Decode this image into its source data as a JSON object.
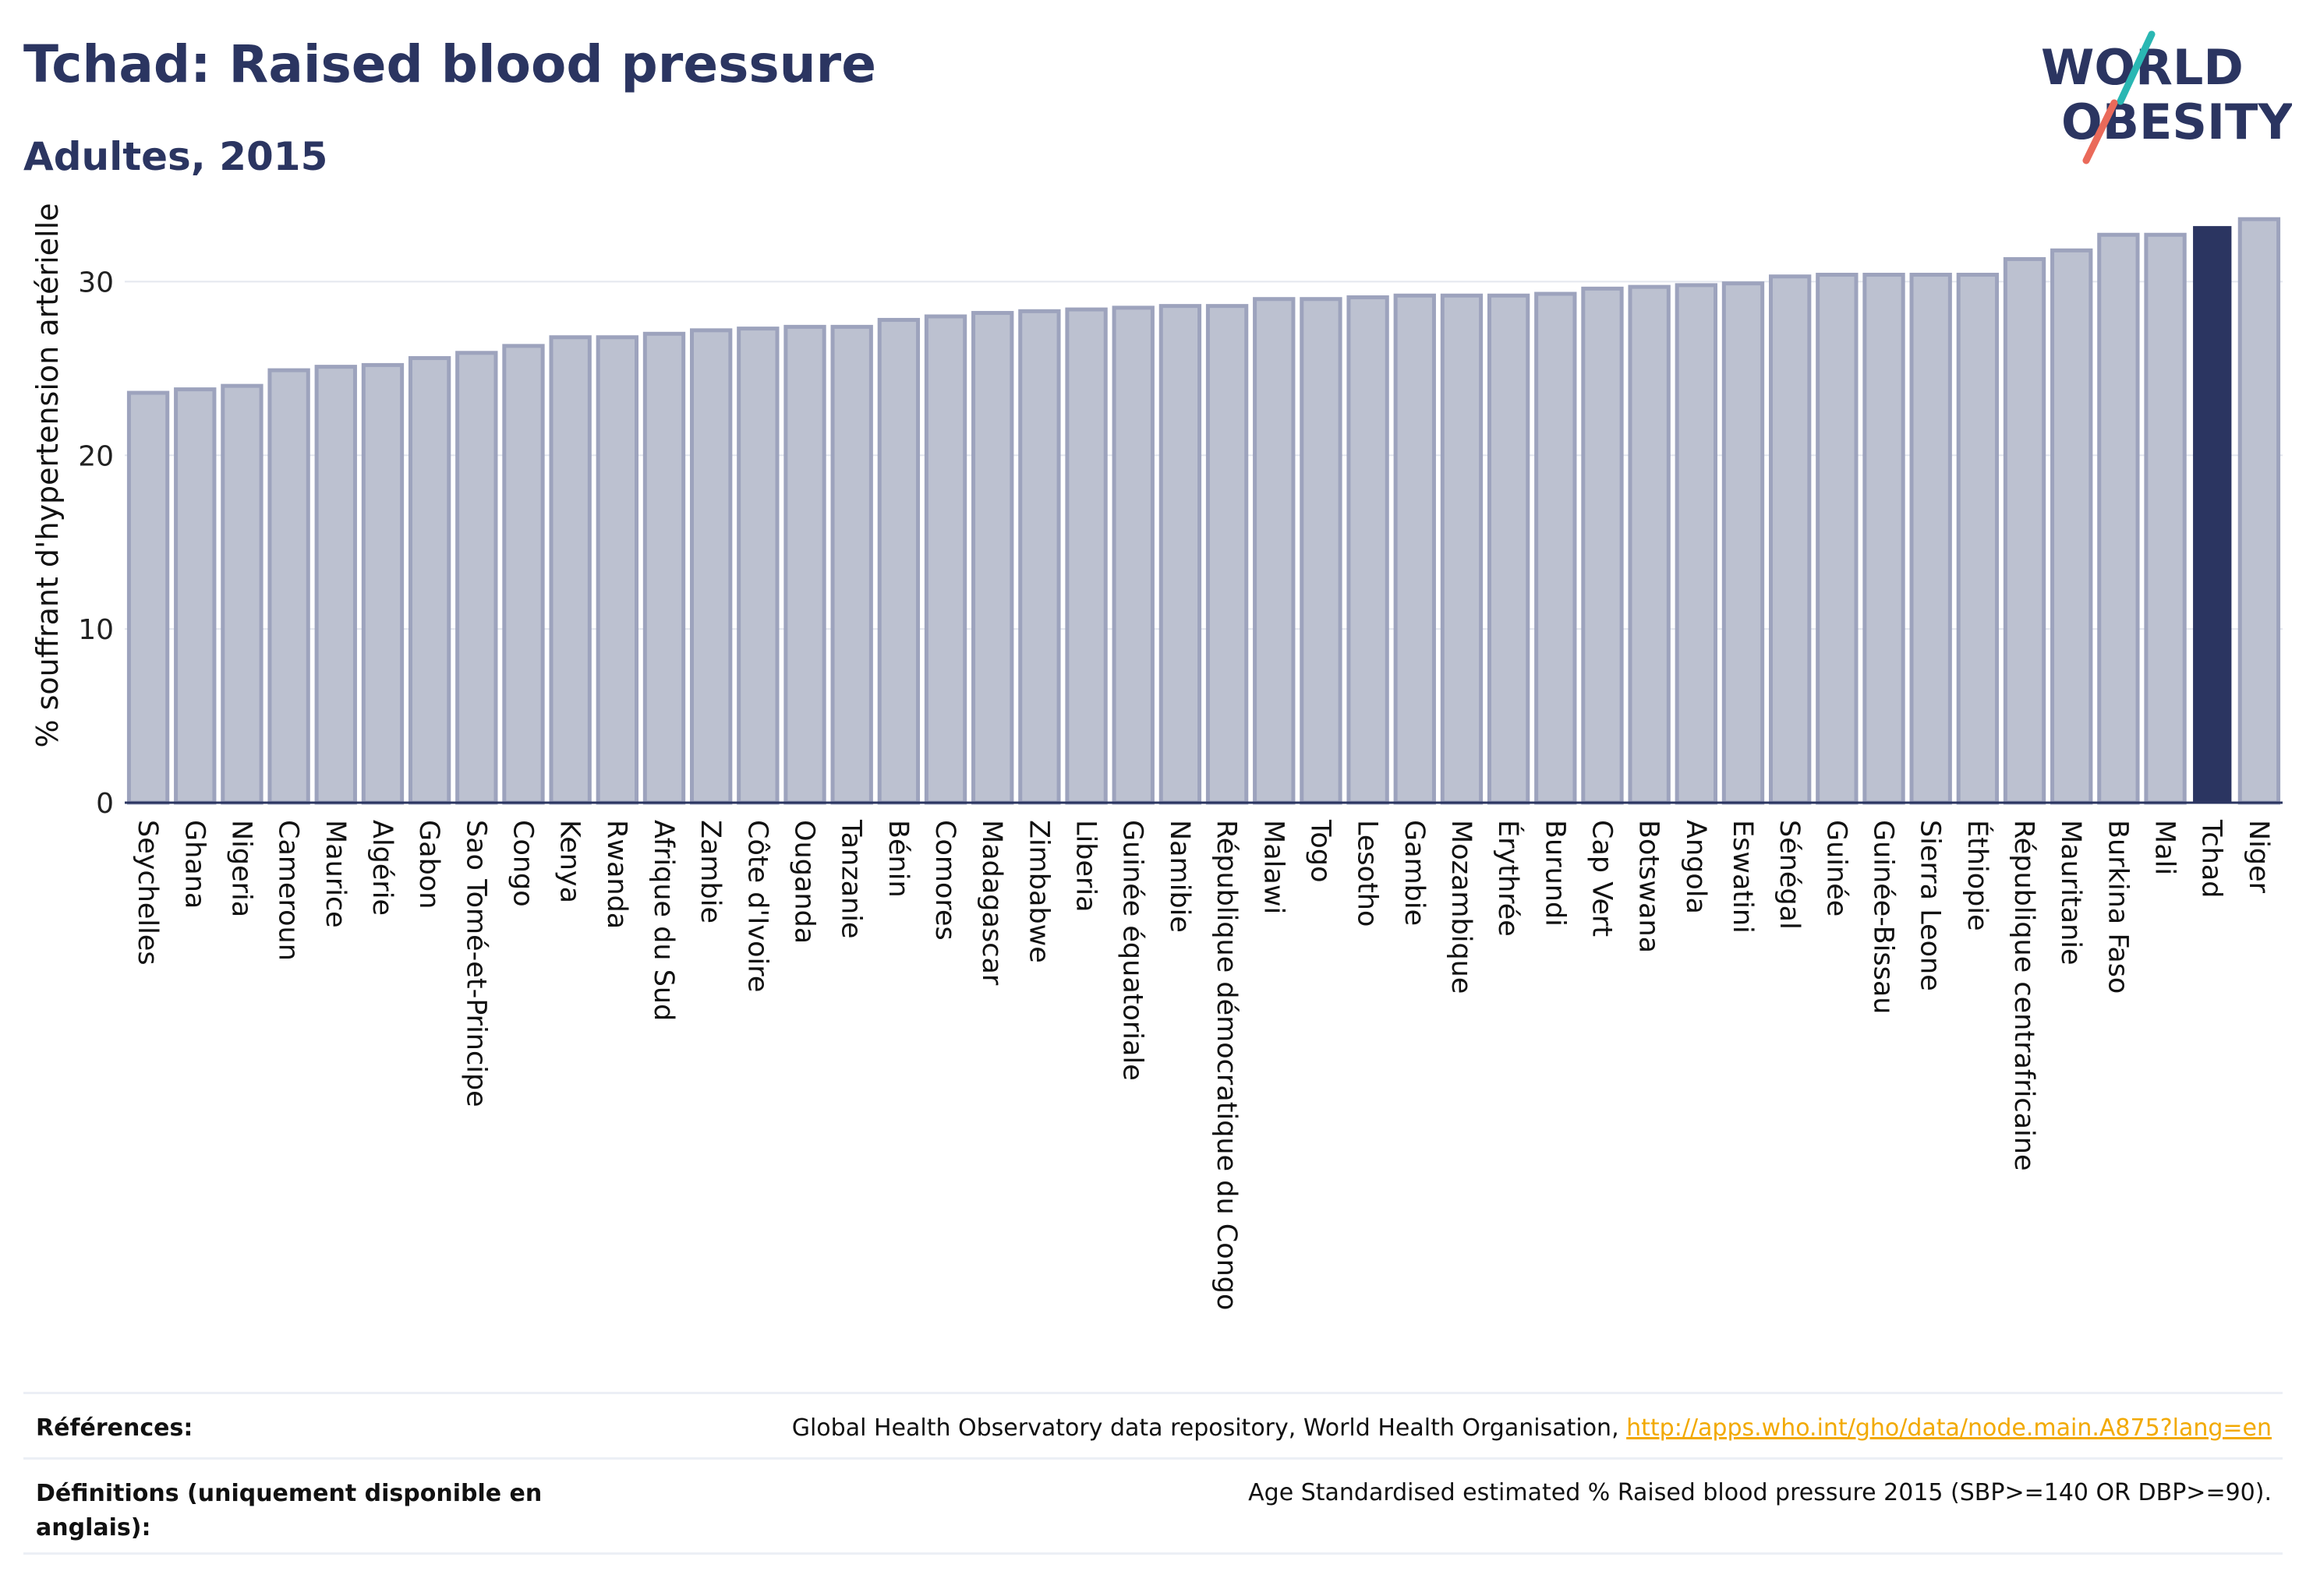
{
  "header": {
    "title": "Tchad: Raised blood pressure",
    "subtitle": "Adultes, 2015"
  },
  "logo": {
    "line1": "WORLD",
    "line2": "OBESITY"
  },
  "colors": {
    "highlight": "#2b3561",
    "bar_fill": "#bcc1d0",
    "bar_edge": "#9da3bd",
    "title": "#2b3561",
    "link": "#f2a900",
    "logo_teal": "#2ab7b3",
    "logo_coral": "#ea6a5a"
  },
  "chart_data": {
    "type": "bar",
    "title": "Tchad: Raised blood pressure",
    "subtitle": "Adultes, 2015",
    "ylabel": "% souffrant d'hypertension artérielle",
    "xlabel": "",
    "ylim": [
      0,
      35
    ],
    "yticks": [
      0,
      10,
      20,
      30
    ],
    "grid": true,
    "highlight": "Tchad",
    "categories": [
      "Seychelles",
      "Ghana",
      "Nigeria",
      "Cameroun",
      "Maurice",
      "Algérie",
      "Gabon",
      "Sao Tomé-et-Principe",
      "Congo",
      "Kenya",
      "Rwanda",
      "Afrique du Sud",
      "Zambie",
      "Côte d'Ivoire",
      "Ouganda",
      "Tanzanie",
      "Bénin",
      "Comores",
      "Madagascar",
      "Zimbabwe",
      "Liberia",
      "Guinée équatoriale",
      "Namibie",
      "République démocratique du Congo",
      "Malawi",
      "Togo",
      "Lesotho",
      "Gambie",
      "Mozambique",
      "Érythrée",
      "Burundi",
      "Cap Vert",
      "Botswana",
      "Angola",
      "Eswatini",
      "Sénégal",
      "Guinée",
      "Guinée-Bissau",
      "Sierra Leone",
      "Éthiopie",
      "République centrafricaine",
      "Mauritanie",
      "Burkina Faso",
      "Mali",
      "Tchad",
      "Niger"
    ],
    "values": [
      23.6,
      23.8,
      24.0,
      24.9,
      25.1,
      25.2,
      25.6,
      25.9,
      26.3,
      26.8,
      26.8,
      27.0,
      27.2,
      27.3,
      27.4,
      27.4,
      27.8,
      28.0,
      28.2,
      28.3,
      28.4,
      28.5,
      28.6,
      28.6,
      29.0,
      29.0,
      29.1,
      29.2,
      29.2,
      29.2,
      29.3,
      29.6,
      29.7,
      29.8,
      29.9,
      30.3,
      30.4,
      30.4,
      30.4,
      30.4,
      31.3,
      31.8,
      32.7,
      32.7,
      33.2,
      33.6
    ]
  },
  "footer": {
    "references_label": "Références:",
    "references_text": "Global Health Observatory data repository, World Health Organisation, ",
    "references_link": "http://apps.who.int/gho/data/node.main.A875?lang=en",
    "definitions_label": "Définitions (uniquement disponible en anglais):",
    "definitions_text": "Age Standardised estimated % Raised blood pressure 2015 (SBP>=140 OR DBP>=90)."
  }
}
